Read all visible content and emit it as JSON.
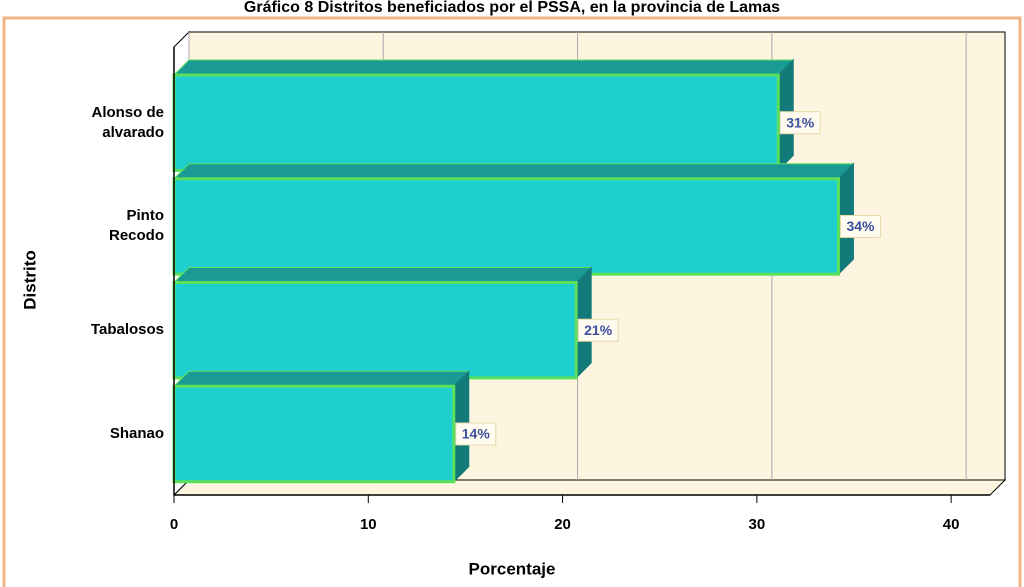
{
  "chart_data": {
    "type": "bar",
    "orientation": "horizontal",
    "title": "Gráfico 8 Distritos beneficiados por el PSSA, en la provincia de Lamas",
    "categories": [
      "Alonso de\nalvarado",
      "Pinto\nRecodo",
      "Tabalosos",
      "Shanao"
    ],
    "values": [
      31.1,
      34.2,
      20.7,
      14.4
    ],
    "value_labels": [
      "31%",
      "34%",
      "21%",
      "14%"
    ],
    "color": "#1fcfcf",
    "xlim": [
      0,
      42
    ],
    "xticks": [
      0,
      10,
      20,
      30,
      40
    ],
    "grid": true,
    "xlabel": "Porcentaje",
    "ylabel": "Distrito"
  }
}
